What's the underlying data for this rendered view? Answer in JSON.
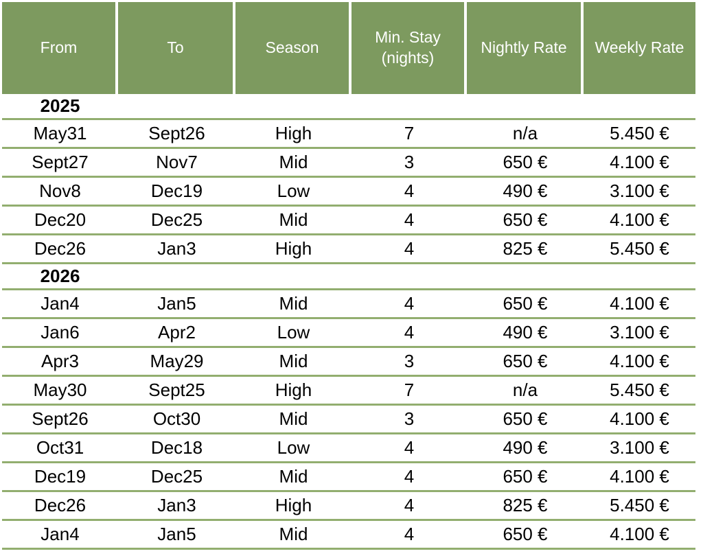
{
  "colors": {
    "header_bg": "#7d9a5f",
    "header_text": "#ffffff",
    "row_line": "#92ae6f",
    "body_text": "#000000"
  },
  "chart_data": {
    "type": "table",
    "columns": [
      "From",
      "To",
      "Season",
      "Min. Stay (nights)",
      "Nightly Rate",
      "Weekly Rate"
    ],
    "groups": [
      {
        "year": "2025",
        "rows": [
          [
            "May31",
            "Sept26",
            "High",
            "7",
            "n/a",
            "5.450 €"
          ],
          [
            "Sept27",
            "Nov7",
            "Mid",
            "3",
            "650 €",
            "4.100 €"
          ],
          [
            "Nov8",
            "Dec19",
            "Low",
            "4",
            "490 €",
            "3.100 €"
          ],
          [
            "Dec20",
            "Dec25",
            "Mid",
            "4",
            "650 €",
            "4.100 €"
          ],
          [
            "Dec26",
            "Jan3",
            "High",
            "4",
            "825 €",
            "5.450 €"
          ]
        ]
      },
      {
        "year": "2026",
        "rows": [
          [
            "Jan4",
            "Jan5",
            "Mid",
            "4",
            "650 €",
            "4.100 €"
          ],
          [
            "Jan6",
            "Apr2",
            "Low",
            "4",
            "490 €",
            "3.100 €"
          ],
          [
            "Apr3",
            "May29",
            "Mid",
            "3",
            "650 €",
            "4.100 €"
          ],
          [
            "May30",
            "Sept25",
            "High",
            "7",
            "n/a",
            "5.450 €"
          ],
          [
            "Sept26",
            "Oct30",
            "Mid",
            "3",
            "650 €",
            "4.100 €"
          ],
          [
            "Oct31",
            "Dec18",
            "Low",
            "4",
            "490 €",
            "3.100 €"
          ],
          [
            "Dec19",
            "Dec25",
            "Mid",
            "4",
            "650 €",
            "4.100 €"
          ],
          [
            "Dec26",
            "Jan3",
            "High",
            "4",
            "825 €",
            "5.450 €"
          ],
          [
            "Jan4",
            "Jan5",
            "Mid",
            "4",
            "650 €",
            "4.100 €"
          ]
        ]
      }
    ]
  }
}
